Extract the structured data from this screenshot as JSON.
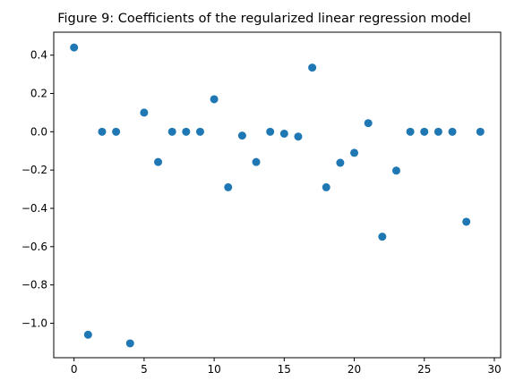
{
  "chart_data": {
    "type": "scatter",
    "title": "Figure 9: Coefficients of the regularized linear regression model",
    "xlabel": "",
    "ylabel": "",
    "xlim": [
      -1.45,
      30.45
    ],
    "ylim": [
      -1.18,
      0.52
    ],
    "xticks": [
      0,
      5,
      10,
      15,
      20,
      25,
      30
    ],
    "xtick_labels": [
      "0",
      "5",
      "10",
      "15",
      "20",
      "25",
      "30"
    ],
    "yticks": [
      0.4,
      0.2,
      0.0,
      -0.2,
      -0.4,
      -0.6,
      -0.8,
      -1.0
    ],
    "ytick_labels": [
      "0.4",
      "0.2",
      "0.0",
      "−0.2",
      "−0.4",
      "−0.6",
      "−0.8",
      "−1.0"
    ],
    "grid": false,
    "marker_color": "#1f77b4",
    "series": [
      {
        "name": "coefficients",
        "x": [
          0,
          1,
          2,
          3,
          4,
          5,
          6,
          7,
          8,
          9,
          10,
          11,
          12,
          13,
          14,
          15,
          16,
          17,
          18,
          19,
          20,
          21,
          22,
          23,
          24,
          25,
          26,
          27,
          28,
          29
        ],
        "y": [
          0.44,
          -1.06,
          0.0,
          0.0,
          -1.105,
          0.1,
          -0.158,
          0.0,
          0.0,
          0.0,
          0.17,
          -0.29,
          -0.02,
          -0.158,
          0.0,
          -0.01,
          -0.025,
          0.335,
          -0.29,
          -0.162,
          -0.11,
          0.045,
          -0.548,
          -0.203,
          0.0,
          0.0,
          0.0,
          0.0,
          -0.47,
          0.0
        ]
      }
    ]
  }
}
